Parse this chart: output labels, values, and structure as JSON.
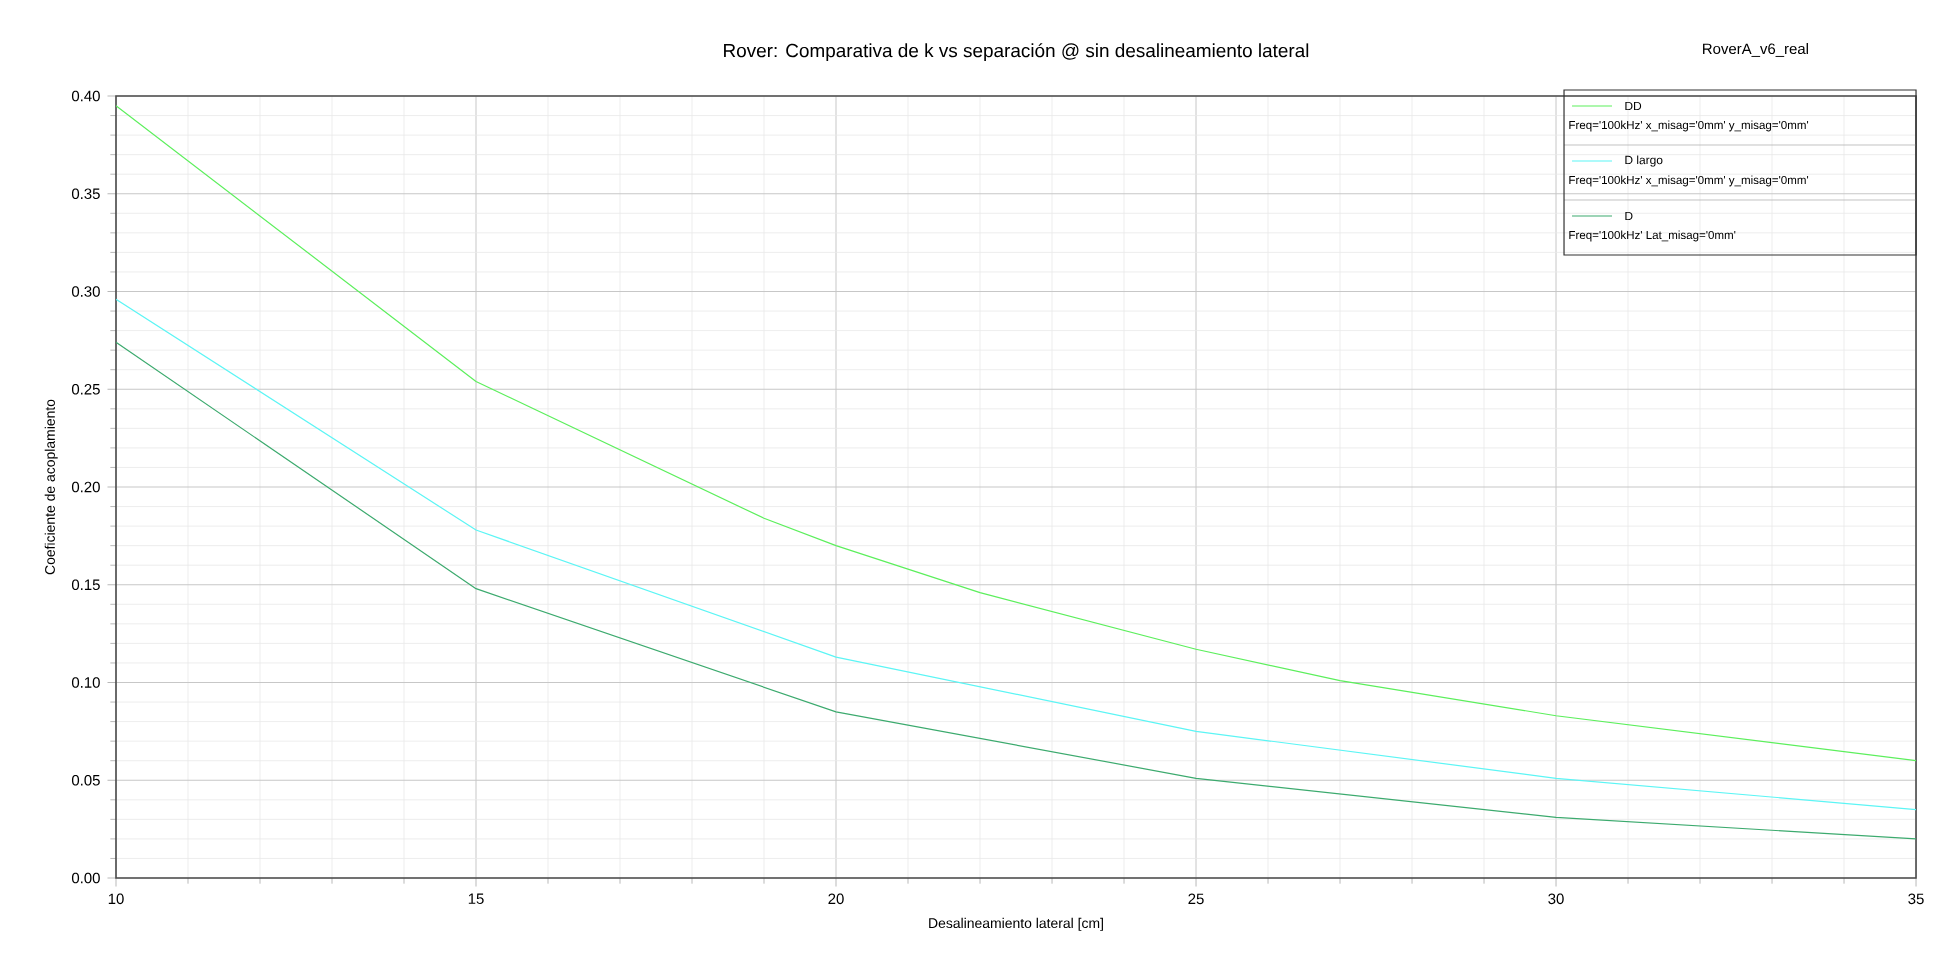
{
  "chart_data": {
    "type": "line",
    "title": "Rover: Comparativa de k vs separación @ sin desalineamiento lateral",
    "xlabel": "Desalineamiento lateral [cm]",
    "ylabel": "Coeficiente de acoplamiento",
    "annotations": [
      "RoverA_v6_real",
      "Freq='100kHz' x_misag='0mm' y_misag='0mm'",
      "Freq='100kHz' x_misag='0mm' y_misag='0mm'",
      "Freq='100kHz' Lat_misag='0mm'"
    ],
    "series": [
      {
        "name": "DD",
        "color": "#5cef5c",
        "x": [
          10,
          15,
          19,
          20,
          22,
          25,
          27,
          30,
          35
        ],
        "values": [
          0.395,
          0.254,
          0.184,
          0.17,
          0.146,
          0.117,
          0.101,
          0.083,
          0.06
        ]
      },
      {
        "name": "D largo",
        "color": "#5cf5f5",
        "x": [
          10,
          15,
          20,
          25,
          30,
          35
        ],
        "values": [
          0.296,
          0.178,
          0.113,
          0.075,
          0.051,
          0.035
        ]
      },
      {
        "name": "D",
        "color": "#3caa6e",
        "x": [
          10,
          15,
          20,
          25,
          30,
          35
        ],
        "values": [
          0.274,
          0.148,
          0.085,
          0.051,
          0.031,
          0.02
        ]
      }
    ],
    "xlim": [
      10,
      35
    ],
    "xticks": [
      10,
      15,
      20,
      25,
      30,
      35
    ],
    "ylim": [
      0,
      0.4
    ],
    "yticks": [
      {
        "value": 0,
        "label": "0.00"
      },
      0.05,
      {
        "value": 0.1,
        "label": "0.10"
      },
      0.15,
      {
        "value": 0.2,
        "label": "0.20"
      },
      0.25,
      {
        "value": 0.3,
        "label": "0.30"
      },
      0.35,
      {
        "value": 0.4,
        "label": "0.40"
      }
    ],
    "grid": true,
    "legend": "top right"
  }
}
